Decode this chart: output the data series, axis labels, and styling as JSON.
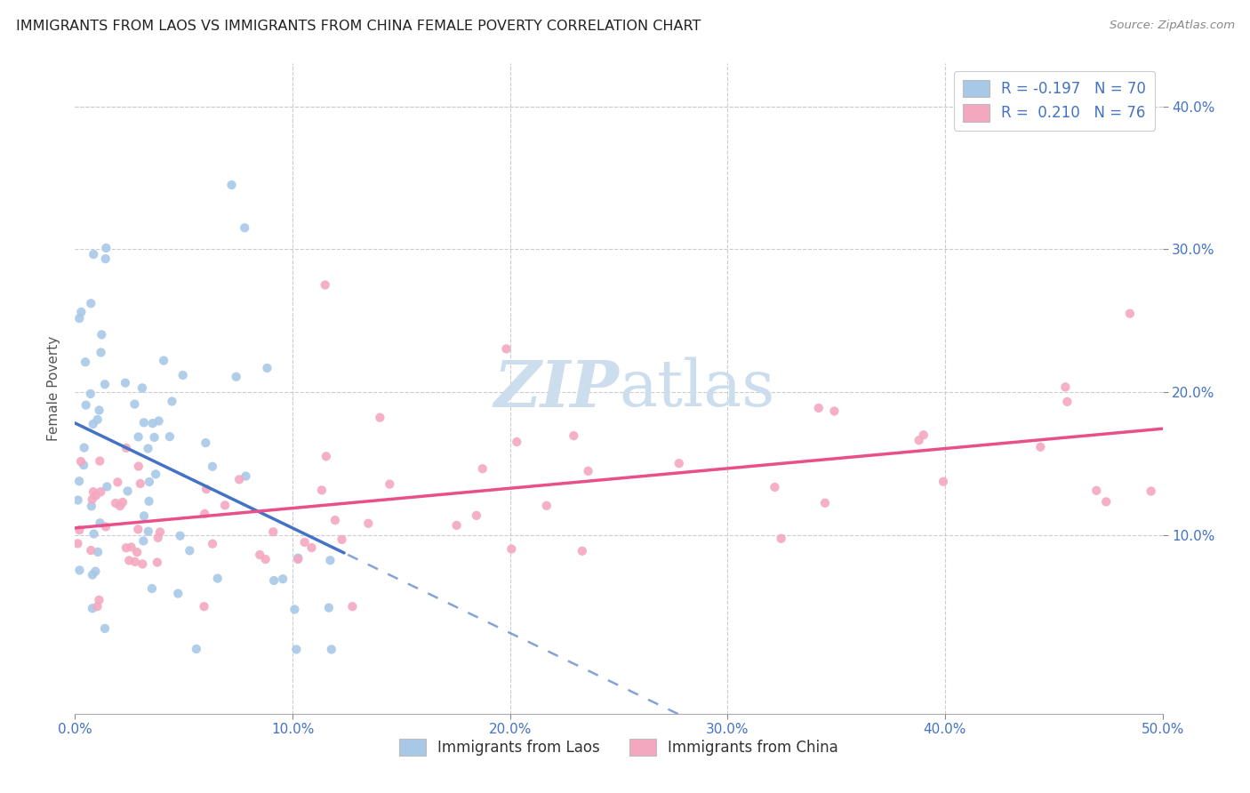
{
  "title": "IMMIGRANTS FROM LAOS VS IMMIGRANTS FROM CHINA FEMALE POVERTY CORRELATION CHART",
  "source": "Source: ZipAtlas.com",
  "ylabel": "Female Poverty",
  "xlabel_label_laos": "Immigrants from Laos",
  "xlabel_label_china": "Immigrants from China",
  "xlim": [
    0.0,
    0.5
  ],
  "ylim": [
    -0.025,
    0.43
  ],
  "laos_color": "#a8c8e8",
  "china_color": "#f4a8c0",
  "laos_line_color": "#4472c4",
  "china_line_color": "#e8508a",
  "laos_R": -0.197,
  "laos_N": 70,
  "china_R": 0.21,
  "china_N": 76,
  "background_color": "#ffffff",
  "grid_color": "#cccccc",
  "title_color": "#222222",
  "watermark_color": "#ccdded",
  "watermark_text": "ZIPatlas",
  "xtick_vals": [
    0.0,
    0.1,
    0.2,
    0.3,
    0.4,
    0.5
  ],
  "xtick_labels": [
    "0.0%",
    "10.0%",
    "20.0%",
    "30.0%",
    "40.0%",
    "50.0%"
  ],
  "ytick_vals": [
    0.1,
    0.2,
    0.3,
    0.4
  ],
  "ytick_labels": [
    "10.0%",
    "20.0%",
    "30.0%",
    "40.0%"
  ]
}
